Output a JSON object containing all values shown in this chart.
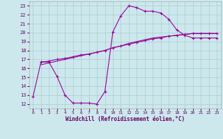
{
  "xlabel": "Windchill (Refroidissement éolien,°C)",
  "xlim": [
    -0.5,
    23.5
  ],
  "ylim": [
    11.5,
    23.5
  ],
  "xticks": [
    0,
    1,
    2,
    3,
    4,
    5,
    6,
    7,
    8,
    9,
    10,
    11,
    12,
    13,
    14,
    15,
    16,
    17,
    18,
    19,
    20,
    21,
    22,
    23
  ],
  "yticks": [
    12,
    13,
    14,
    15,
    16,
    17,
    18,
    19,
    20,
    21,
    22,
    23
  ],
  "bg_color": "#cce8ed",
  "line_color": "#990099",
  "grid_color": "#aacccc",
  "line1_x": [
    0,
    1,
    2,
    3,
    4,
    5,
    6,
    7,
    8,
    9,
    10,
    11,
    12,
    13,
    14,
    15,
    16,
    17,
    18,
    19,
    20,
    21,
    22,
    23
  ],
  "line1_y": [
    12.8,
    16.7,
    16.7,
    15.1,
    13.0,
    12.1,
    12.1,
    12.1,
    12.0,
    13.4,
    20.1,
    21.9,
    23.0,
    22.8,
    22.4,
    22.4,
    22.2,
    21.5,
    20.3,
    19.7,
    19.4,
    19.4,
    19.4,
    19.4
  ],
  "line2_x": [
    1,
    2,
    3,
    4,
    5,
    6,
    7,
    8,
    9,
    10,
    11,
    12,
    13,
    14,
    15,
    16,
    17,
    18,
    19,
    20,
    21,
    22,
    23
  ],
  "line2_y": [
    16.7,
    16.8,
    17.0,
    17.1,
    17.3,
    17.5,
    17.6,
    17.8,
    18.0,
    18.3,
    18.5,
    18.7,
    18.9,
    19.1,
    19.3,
    19.4,
    19.6,
    19.7,
    19.8,
    19.9,
    19.9,
    19.9,
    19.9
  ],
  "line3_x": [
    1,
    2,
    3,
    4,
    5,
    6,
    7,
    8,
    9,
    10,
    11,
    12,
    13,
    14,
    15,
    16,
    17,
    18,
    19,
    20,
    21,
    22,
    23
  ],
  "line3_y": [
    16.4,
    16.6,
    16.8,
    17.0,
    17.2,
    17.4,
    17.6,
    17.8,
    18.0,
    18.3,
    18.5,
    18.8,
    19.0,
    19.2,
    19.4,
    19.5,
    19.6,
    19.7,
    19.8,
    19.9,
    19.9,
    19.9,
    19.9
  ]
}
